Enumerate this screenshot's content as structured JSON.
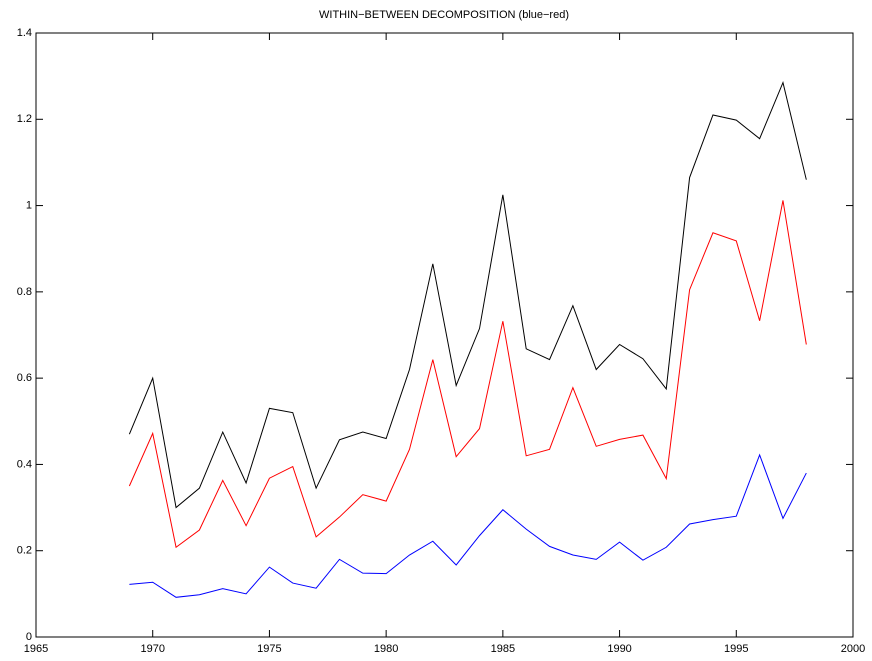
{
  "chart_data": {
    "type": "line",
    "title": "WITHIN−BETWEEN DECOMPOSITION (blue−red)",
    "x": [
      1969,
      1970,
      1971,
      1972,
      1973,
      1974,
      1975,
      1976,
      1977,
      1978,
      1979,
      1980,
      1981,
      1982,
      1983,
      1984,
      1985,
      1986,
      1987,
      1988,
      1989,
      1990,
      1991,
      1992,
      1993,
      1994,
      1995,
      1996,
      1997,
      1998
    ],
    "series": [
      {
        "color": "#000000",
        "values": [
          0.47,
          0.6,
          0.3,
          0.345,
          0.475,
          0.357,
          0.53,
          0.52,
          0.345,
          0.457,
          0.475,
          0.46,
          0.62,
          0.865,
          0.583,
          0.715,
          1.025,
          0.668,
          0.643,
          0.768,
          0.62,
          0.678,
          0.645,
          0.575,
          1.065,
          1.21,
          1.198,
          1.155,
          1.285,
          1.06
        ]
      },
      {
        "color": "#ff0000",
        "values": [
          0.35,
          0.472,
          0.208,
          0.248,
          0.363,
          0.258,
          0.368,
          0.395,
          0.232,
          0.278,
          0.33,
          0.315,
          0.435,
          0.643,
          0.418,
          0.483,
          0.732,
          0.42,
          0.435,
          0.578,
          0.442,
          0.458,
          0.468,
          0.367,
          0.805,
          0.937,
          0.918,
          0.733,
          1.012,
          0.678
        ]
      },
      {
        "color": "#0000ff",
        "values": [
          0.122,
          0.127,
          0.092,
          0.098,
          0.112,
          0.1,
          0.162,
          0.125,
          0.113,
          0.18,
          0.148,
          0.147,
          0.19,
          0.222,
          0.167,
          0.235,
          0.295,
          0.25,
          0.21,
          0.19,
          0.18,
          0.22,
          0.178,
          0.208,
          0.262,
          0.272,
          0.28,
          0.422,
          0.275,
          0.38
        ]
      }
    ],
    "xlim": [
      1965,
      2000
    ],
    "xticks": [
      1965,
      1970,
      1975,
      1980,
      1985,
      1990,
      1995,
      2000
    ],
    "ylim": [
      0,
      1.4
    ],
    "yticks": [
      0,
      0.2,
      0.4,
      0.6,
      0.8,
      1,
      1.2,
      1.4
    ]
  }
}
